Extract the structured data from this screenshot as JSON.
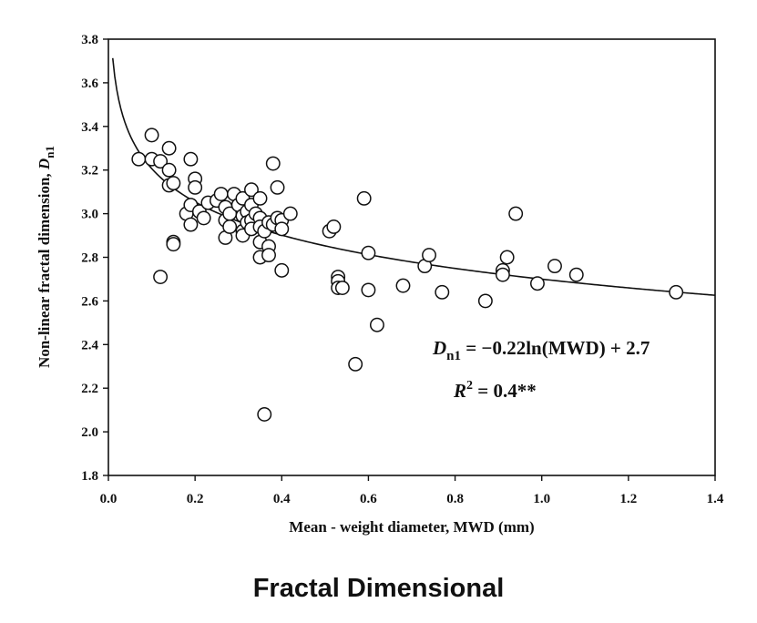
{
  "caption": "Fractal Dimensional",
  "chart_data": {
    "type": "scatter",
    "xlabel": "Mean - weight diameter, MWD (mm)",
    "ylabel_main": "Non-linear fractal dimension, ",
    "ylabel_var": "D",
    "ylabel_sub": "n1",
    "xlim": [
      0.0,
      1.4
    ],
    "ylim": [
      1.8,
      3.8
    ],
    "xticks": [
      "0.0",
      "0.2",
      "0.4",
      "0.6",
      "0.8",
      "1.0",
      "1.2",
      "1.4"
    ],
    "yticks": [
      "1.8",
      "2.0",
      "2.2",
      "2.4",
      "2.6",
      "2.8",
      "3.0",
      "3.2",
      "3.4",
      "3.6",
      "3.8"
    ],
    "grid": false,
    "fit": {
      "a": -0.22,
      "b": 2.7,
      "form": "log"
    },
    "equation": {
      "var": "D",
      "sub": "n1",
      "rhs": " = −0.22ln(MWD) + 2.7",
      "r2_var": "R",
      "r2_sup": "2",
      "r2_rhs": " = 0.4**"
    },
    "points": [
      [
        0.07,
        3.25
      ],
      [
        0.1,
        3.36
      ],
      [
        0.1,
        3.25
      ],
      [
        0.12,
        3.24
      ],
      [
        0.14,
        3.3
      ],
      [
        0.14,
        3.2
      ],
      [
        0.14,
        3.13
      ],
      [
        0.15,
        3.14
      ],
      [
        0.12,
        2.71
      ],
      [
        0.15,
        2.87
      ],
      [
        0.15,
        2.86
      ],
      [
        0.19,
        3.25
      ],
      [
        0.2,
        3.16
      ],
      [
        0.2,
        3.12
      ],
      [
        0.18,
        3.0
      ],
      [
        0.19,
        3.04
      ],
      [
        0.19,
        2.95
      ],
      [
        0.21,
        3.01
      ],
      [
        0.22,
        2.98
      ],
      [
        0.23,
        3.05
      ],
      [
        0.25,
        3.06
      ],
      [
        0.26,
        3.09
      ],
      [
        0.27,
        3.03
      ],
      [
        0.27,
        2.97
      ],
      [
        0.27,
        2.89
      ],
      [
        0.28,
        3.0
      ],
      [
        0.28,
        2.94
      ],
      [
        0.29,
        3.09
      ],
      [
        0.3,
        3.04
      ],
      [
        0.31,
        3.07
      ],
      [
        0.31,
        2.99
      ],
      [
        0.31,
        2.92
      ],
      [
        0.31,
        2.9
      ],
      [
        0.32,
        3.01
      ],
      [
        0.32,
        2.96
      ],
      [
        0.33,
        3.11
      ],
      [
        0.33,
        3.04
      ],
      [
        0.33,
        2.97
      ],
      [
        0.33,
        2.93
      ],
      [
        0.34,
        3.0
      ],
      [
        0.35,
        3.07
      ],
      [
        0.35,
        2.98
      ],
      [
        0.35,
        2.94
      ],
      [
        0.35,
        2.87
      ],
      [
        0.35,
        2.8
      ],
      [
        0.36,
        2.92
      ],
      [
        0.37,
        2.96
      ],
      [
        0.37,
        2.85
      ],
      [
        0.37,
        2.81
      ],
      [
        0.38,
        3.23
      ],
      [
        0.38,
        2.95
      ],
      [
        0.39,
        3.12
      ],
      [
        0.39,
        2.98
      ],
      [
        0.4,
        2.97
      ],
      [
        0.4,
        2.93
      ],
      [
        0.4,
        2.74
      ],
      [
        0.42,
        3.0
      ],
      [
        0.36,
        2.08
      ],
      [
        0.51,
        2.92
      ],
      [
        0.52,
        2.94
      ],
      [
        0.53,
        2.71
      ],
      [
        0.53,
        2.69
      ],
      [
        0.53,
        2.66
      ],
      [
        0.54,
        2.66
      ],
      [
        0.57,
        2.31
      ],
      [
        0.59,
        3.07
      ],
      [
        0.6,
        2.82
      ],
      [
        0.6,
        2.65
      ],
      [
        0.62,
        2.49
      ],
      [
        0.68,
        2.67
      ],
      [
        0.73,
        2.76
      ],
      [
        0.74,
        2.81
      ],
      [
        0.77,
        2.64
      ],
      [
        0.87,
        2.6
      ],
      [
        0.91,
        2.74
      ],
      [
        0.91,
        2.72
      ],
      [
        0.92,
        2.8
      ],
      [
        0.94,
        3.0
      ],
      [
        0.99,
        2.68
      ],
      [
        1.03,
        2.76
      ],
      [
        1.08,
        2.72
      ],
      [
        1.31,
        2.64
      ]
    ]
  }
}
